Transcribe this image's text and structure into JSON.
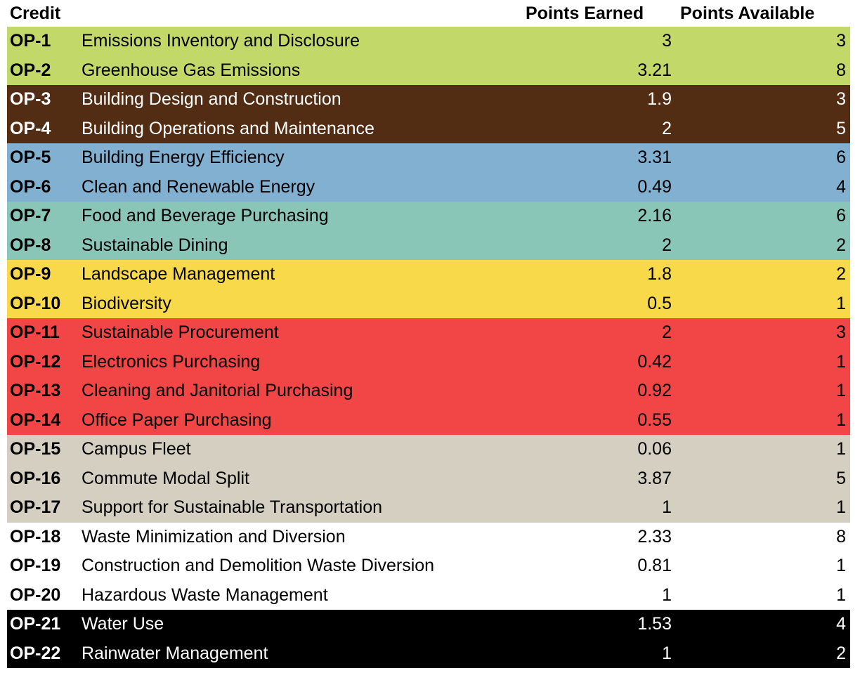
{
  "header": {
    "credit_label": "Credit",
    "earned_label": "Points Earned",
    "available_label": "Points Available"
  },
  "rows": [
    {
      "code": "OP-1",
      "name": "Emissions Inventory and Disclosure",
      "earned": "3",
      "available": "3",
      "bg": "#c2d868",
      "fg": "#000000"
    },
    {
      "code": "OP-2",
      "name": "Greenhouse Gas Emissions",
      "earned": "3.21",
      "available": "8",
      "bg": "#c2d868",
      "fg": "#000000"
    },
    {
      "code": "OP-3",
      "name": "Building Design and Construction",
      "earned": "1.9",
      "available": "3",
      "bg": "#532d13",
      "fg": "#ffffff"
    },
    {
      "code": "OP-4",
      "name": "Building Operations and Maintenance",
      "earned": "2",
      "available": "5",
      "bg": "#532d13",
      "fg": "#ffffff"
    },
    {
      "code": "OP-5",
      "name": "Building Energy Efficiency",
      "earned": "3.31",
      "available": "6",
      "bg": "#82b0d1",
      "fg": "#000000"
    },
    {
      "code": "OP-6",
      "name": "Clean and Renewable Energy",
      "earned": "0.49",
      "available": "4",
      "bg": "#82b0d1",
      "fg": "#000000"
    },
    {
      "code": "OP-7",
      "name": "Food and Beverage Purchasing",
      "earned": "2.16",
      "available": "6",
      "bg": "#8ac6b8",
      "fg": "#000000"
    },
    {
      "code": "OP-8",
      "name": "Sustainable Dining",
      "earned": "2",
      "available": "2",
      "bg": "#8ac6b8",
      "fg": "#000000"
    },
    {
      "code": "OP-9",
      "name": "Landscape Management",
      "earned": "1.8",
      "available": "2",
      "bg": "#f7d94a",
      "fg": "#000000"
    },
    {
      "code": "OP-10",
      "name": "Biodiversity",
      "earned": "0.5",
      "available": "1",
      "bg": "#f7d94a",
      "fg": "#000000"
    },
    {
      "code": "OP-11",
      "name": "Sustainable Procurement",
      "earned": "2",
      "available": "3",
      "bg": "#f24646",
      "fg": "#000000"
    },
    {
      "code": "OP-12",
      "name": "Electronics Purchasing",
      "earned": "0.42",
      "available": "1",
      "bg": "#f24646",
      "fg": "#000000"
    },
    {
      "code": "OP-13",
      "name": "Cleaning and Janitorial Purchasing",
      "earned": "0.92",
      "available": "1",
      "bg": "#f24646",
      "fg": "#000000"
    },
    {
      "code": "OP-14",
      "name": "Office Paper Purchasing",
      "earned": "0.55",
      "available": "1",
      "bg": "#f24646",
      "fg": "#000000"
    },
    {
      "code": "OP-15",
      "name": "Campus Fleet",
      "earned": "0.06",
      "available": "1",
      "bg": "#d5cfc1",
      "fg": "#000000"
    },
    {
      "code": "OP-16",
      "name": "Commute Modal Split",
      "earned": "3.87",
      "available": "5",
      "bg": "#d5cfc1",
      "fg": "#000000"
    },
    {
      "code": "OP-17",
      "name": "Support for Sustainable Transportation",
      "earned": "1",
      "available": "1",
      "bg": "#d5cfc1",
      "fg": "#000000"
    },
    {
      "code": "OP-18",
      "name": "Waste Minimization and Diversion",
      "earned": "2.33",
      "available": "8",
      "bg": "#ffffff",
      "fg": "#000000"
    },
    {
      "code": "OP-19",
      "name": "Construction and Demolition Waste Diversion",
      "earned": "0.81",
      "available": "1",
      "bg": "#ffffff",
      "fg": "#000000"
    },
    {
      "code": "OP-20",
      "name": "Hazardous Waste Management",
      "earned": "1",
      "available": "1",
      "bg": "#ffffff",
      "fg": "#000000"
    },
    {
      "code": "OP-21",
      "name": "Water Use",
      "earned": "1.53",
      "available": "4",
      "bg": "#000000",
      "fg": "#ffffff"
    },
    {
      "code": "OP-22",
      "name": "Rainwater Management",
      "earned": "1",
      "available": "2",
      "bg": "#000000",
      "fg": "#ffffff"
    }
  ]
}
